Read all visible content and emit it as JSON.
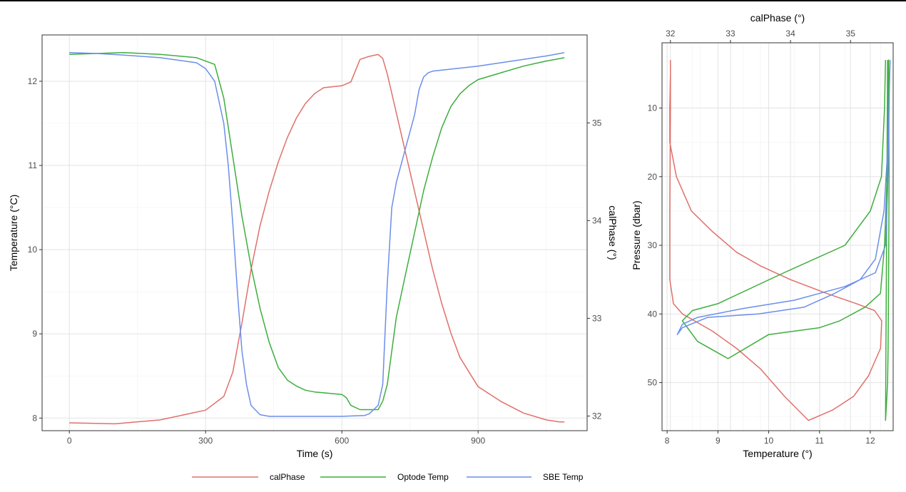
{
  "colors": {
    "calPhase": "#E0706A",
    "optode": "#3DAE3D",
    "sbe": "#6B8EEA",
    "grid_major": "#E3E3E3",
    "grid_minor": "#F1F1F1",
    "panel_border": "#333333"
  },
  "legend": {
    "position": "bottom",
    "items": [
      "calPhase",
      "Optode Temp",
      "SBE Temp"
    ]
  },
  "chart_data": [
    {
      "type": "line",
      "xlabel": "Time (s)",
      "ylabel": "Temperature (°C)",
      "y2label": "calPhase (°)",
      "xlim": [
        -60,
        1140
      ],
      "ylim": [
        7.85,
        12.55
      ],
      "y2lim": [
        31.85,
        35.9
      ],
      "xticks": [
        "0",
        "300",
        "600",
        "900"
      ],
      "yticks": [
        "8",
        "9",
        "10",
        "11",
        "12"
      ],
      "y2ticks": [
        "32",
        "33",
        "34",
        "35"
      ],
      "grid": true,
      "series": [
        {
          "name": "calPhase",
          "axis": "right",
          "x": [
            0,
            100,
            200,
            300,
            340,
            360,
            380,
            400,
            420,
            440,
            460,
            480,
            500,
            520,
            540,
            560,
            600,
            620,
            640,
            660,
            680,
            690,
            700,
            720,
            740,
            760,
            780,
            800,
            820,
            840,
            860,
            880,
            900,
            950,
            1000,
            1050,
            1080,
            1090
          ],
          "y": [
            31.93,
            31.92,
            31.96,
            32.06,
            32.2,
            32.45,
            32.95,
            33.5,
            33.95,
            34.3,
            34.6,
            34.85,
            35.05,
            35.2,
            35.3,
            35.36,
            35.38,
            35.42,
            35.65,
            35.68,
            35.7,
            35.66,
            35.5,
            35.1,
            34.7,
            34.3,
            33.9,
            33.5,
            33.15,
            32.85,
            32.6,
            32.45,
            32.3,
            32.15,
            32.03,
            31.96,
            31.94,
            31.94
          ]
        },
        {
          "name": "Optode Temp",
          "x": [
            0,
            60,
            120,
            200,
            280,
            320,
            340,
            360,
            380,
            400,
            420,
            440,
            460,
            480,
            500,
            520,
            540,
            560,
            600,
            610,
            620,
            640,
            660,
            680,
            690,
            700,
            720,
            740,
            760,
            780,
            800,
            820,
            840,
            860,
            880,
            900,
            950,
            1000,
            1050,
            1080,
            1090
          ],
          "y": [
            12.32,
            12.33,
            12.34,
            12.32,
            12.28,
            12.2,
            11.8,
            11.1,
            10.4,
            9.8,
            9.3,
            8.9,
            8.6,
            8.45,
            8.38,
            8.33,
            8.31,
            8.3,
            8.28,
            8.24,
            8.15,
            8.1,
            8.1,
            8.1,
            8.2,
            8.4,
            9.2,
            9.7,
            10.2,
            10.7,
            11.1,
            11.45,
            11.7,
            11.85,
            11.95,
            12.02,
            12.1,
            12.18,
            12.24,
            12.27,
            12.28
          ]
        },
        {
          "name": "SBE Temp",
          "x": [
            0,
            60,
            120,
            200,
            280,
            300,
            320,
            340,
            350,
            360,
            370,
            380,
            390,
            400,
            420,
            440,
            460,
            500,
            600,
            650,
            660,
            680,
            690,
            700,
            710,
            720,
            740,
            760,
            770,
            780,
            790,
            800,
            850,
            900,
            950,
            1000,
            1050,
            1080,
            1090
          ],
          "y": [
            12.34,
            12.33,
            12.31,
            12.28,
            12.22,
            12.15,
            12.0,
            11.5,
            11.0,
            10.3,
            9.5,
            8.8,
            8.4,
            8.15,
            8.04,
            8.02,
            8.02,
            8.02,
            8.02,
            8.03,
            8.05,
            8.15,
            8.4,
            9.6,
            10.5,
            10.8,
            11.2,
            11.6,
            11.9,
            12.05,
            12.1,
            12.12,
            12.15,
            12.18,
            12.22,
            12.26,
            12.3,
            12.33,
            12.34
          ]
        }
      ]
    },
    {
      "type": "line",
      "xlabel": "Temperature (°)",
      "ylabel": "Pressure (dbar)",
      "x2label": "calPhase (°)",
      "xlim": [
        7.9,
        12.45
      ],
      "ylim": [
        57,
        0.5
      ],
      "x2lim": [
        31.86,
        35.71
      ],
      "xticks": [
        "8",
        "9",
        "10",
        "11",
        "12"
      ],
      "yticks": [
        "10",
        "20",
        "30",
        "40",
        "50"
      ],
      "x2ticks": [
        "32",
        "33",
        "34",
        "35"
      ],
      "grid": true,
      "series": [
        {
          "name": "calPhase",
          "axis": "top",
          "x": [
            32.0,
            32.0,
            31.99,
            31.99,
            32.1,
            32.35,
            32.7,
            33.1,
            33.5,
            34.0,
            34.6,
            35.1,
            35.4,
            35.52,
            35.5,
            35.3,
            35.05,
            34.7,
            34.3,
            33.9,
            33.5,
            33.1,
            32.7,
            32.4,
            32.2,
            32.05,
            31.99,
            31.99,
            32.0,
            32.0
          ],
          "y": [
            3,
            5,
            10,
            15,
            20,
            25,
            28,
            31,
            33,
            35,
            37,
            38.5,
            39.5,
            41,
            45,
            49,
            52,
            54,
            55.5,
            52,
            48,
            45,
            42.5,
            41,
            40,
            38.5,
            35,
            25,
            10,
            3
          ]
        },
        {
          "name": "Optode Temp",
          "x": [
            12.3,
            12.28,
            12.22,
            12.0,
            11.5,
            10.3,
            9.0,
            8.5,
            8.3,
            8.6,
            9.2,
            10.0,
            11.0,
            11.4,
            11.9,
            12.2,
            12.28,
            12.33,
            12.35,
            12.36,
            12.37,
            12.36,
            12.35,
            12.34,
            12.32,
            12.3,
            12.32,
            12.34
          ],
          "y": [
            3,
            10,
            20,
            25,
            30,
            34,
            38.5,
            39.5,
            41,
            44,
            46.5,
            43,
            42,
            41,
            39,
            37,
            30,
            20,
            10,
            3,
            20,
            35,
            45,
            50,
            53,
            55.5,
            30,
            3
          ]
        },
        {
          "name": "SBE Temp",
          "x": [
            12.38,
            12.36,
            12.34,
            12.3,
            12.1,
            11.5,
            10.5,
            9.5,
            8.6,
            8.3,
            8.2,
            8.3,
            8.8,
            9.8,
            10.7,
            11.3,
            11.8,
            12.1,
            12.27,
            12.35,
            12.39
          ],
          "y": [
            5,
            15,
            22,
            30,
            34,
            36,
            38,
            39.2,
            40.5,
            41.5,
            43,
            42,
            40.5,
            40,
            39,
            37,
            35,
            32,
            25,
            15,
            3
          ]
        }
      ]
    }
  ]
}
